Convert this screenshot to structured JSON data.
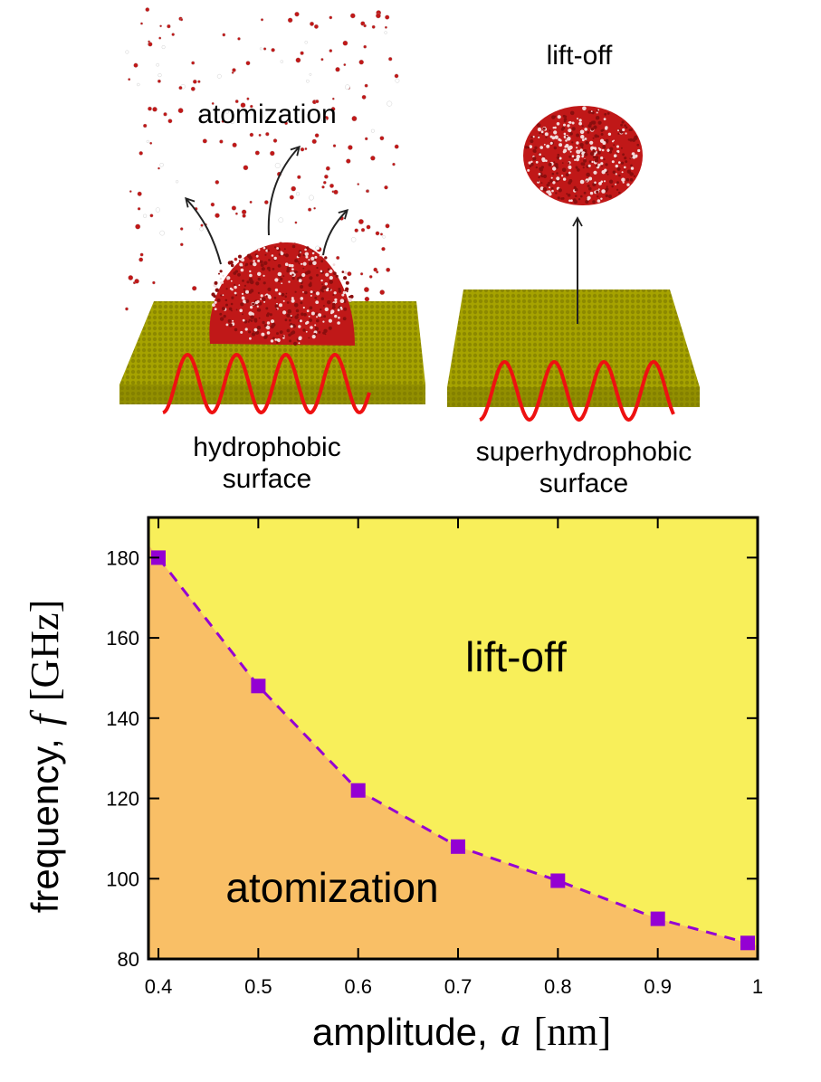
{
  "illustration": {
    "left_panel": {
      "process_label": "atomization",
      "surface_label_line1": "hydrophobic",
      "surface_label_line2": "surface"
    },
    "right_panel": {
      "process_label": "lift-off",
      "surface_label_line1": "superhydrophobic",
      "surface_label_line2": "surface"
    },
    "colors": {
      "surface": "#a6a300",
      "surface_dark": "#6e6c00",
      "wave": "#ee1111",
      "droplet": "#c01818",
      "droplet_light": "#f2dada"
    }
  },
  "chart_data": {
    "type": "area",
    "xlabel_text": "amplitude,",
    "xlabel_symbol": "a",
    "xlabel_unit": "[nm]",
    "ylabel_text": "frequency,",
    "ylabel_symbol": "f",
    "ylabel_unit": "[GHz]",
    "xlim": [
      0.39,
      1.0
    ],
    "ylim": [
      80,
      190
    ],
    "xticks": [
      0.4,
      0.5,
      0.6,
      0.7,
      0.8,
      0.9,
      1.0
    ],
    "xtick_labels": [
      "0.4",
      "0.5",
      "0.6",
      "0.7",
      "0.8",
      "0.9",
      "1"
    ],
    "yticks": [
      80,
      100,
      120,
      140,
      160,
      180
    ],
    "ytick_labels": [
      "80",
      "100",
      "120",
      "140",
      "160",
      "180"
    ],
    "series": {
      "x": [
        0.4,
        0.5,
        0.6,
        0.7,
        0.8,
        0.9,
        0.99
      ],
      "y": [
        180,
        148,
        122,
        108,
        99.5,
        90,
        84
      ]
    },
    "regions": {
      "upper_label": "lift-off",
      "lower_label": "atomization"
    },
    "colors": {
      "upper_region": "#f8ef5a",
      "lower_region": "#f9bf66",
      "marker": "#9400d3"
    },
    "grid": false,
    "legend": "none"
  }
}
